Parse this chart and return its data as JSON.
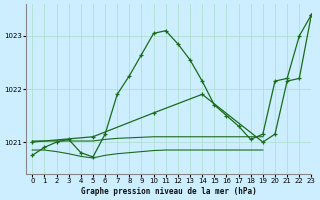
{
  "title": "Graphe pression niveau de la mer (hPa)",
  "background_color": "#cceeff",
  "grid_color": "#aaddcc",
  "line_color": "#1a6b1a",
  "xlim": [
    -0.5,
    23
  ],
  "ylim": [
    1020.4,
    1023.6
  ],
  "yticks": [
    1021,
    1022,
    1023
  ],
  "xticks": [
    0,
    1,
    2,
    3,
    4,
    5,
    6,
    7,
    8,
    9,
    10,
    11,
    12,
    13,
    14,
    15,
    16,
    17,
    18,
    19,
    20,
    21,
    22,
    23
  ],
  "line1_x": [
    0,
    1,
    2,
    3,
    4,
    5,
    6,
    7,
    8,
    9,
    10,
    11,
    12,
    13,
    14,
    15,
    16,
    17,
    18,
    19,
    20,
    21,
    22,
    23
  ],
  "line1_y": [
    1020.75,
    1020.9,
    1021.0,
    1021.05,
    1020.8,
    1020.72,
    1021.15,
    1021.9,
    1022.25,
    1022.65,
    1023.05,
    1023.1,
    1022.85,
    1022.55,
    1022.15,
    1021.7,
    1021.5,
    1021.3,
    1021.05,
    1021.15,
    1022.15,
    1022.2,
    1023.0,
    1023.4
  ],
  "line2_x": [
    0,
    5,
    10,
    14,
    19,
    20,
    21,
    22,
    23
  ],
  "line2_y": [
    1021.0,
    1021.1,
    1021.55,
    1021.9,
    1021.0,
    1021.15,
    1022.15,
    1022.2,
    1023.4
  ],
  "line3_x": [
    0,
    1,
    2,
    3,
    4,
    5,
    6,
    7,
    8,
    9,
    10,
    11,
    12,
    13,
    14,
    15,
    16,
    17,
    18,
    19
  ],
  "line3_y": [
    1021.02,
    1021.02,
    1021.02,
    1021.02,
    1021.02,
    1021.02,
    1021.05,
    1021.07,
    1021.08,
    1021.09,
    1021.1,
    1021.1,
    1021.1,
    1021.1,
    1021.1,
    1021.1,
    1021.1,
    1021.1,
    1021.1,
    1021.1
  ],
  "line4_x": [
    0,
    1,
    2,
    3,
    4,
    5,
    6,
    7,
    8,
    9,
    10,
    11,
    12,
    13,
    14,
    15,
    16,
    17,
    18,
    19
  ],
  "line4_y": [
    1020.85,
    1020.85,
    1020.82,
    1020.78,
    1020.73,
    1020.7,
    1020.75,
    1020.78,
    1020.8,
    1020.82,
    1020.84,
    1020.85,
    1020.85,
    1020.85,
    1020.85,
    1020.85,
    1020.85,
    1020.85,
    1020.85,
    1020.85
  ]
}
